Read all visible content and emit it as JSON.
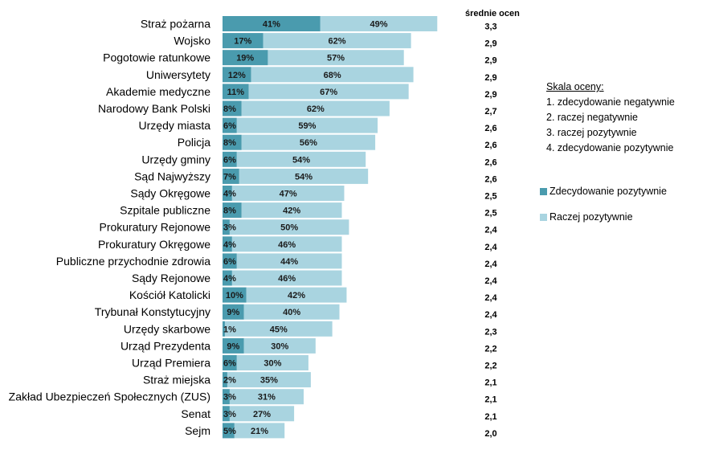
{
  "chart_data": {
    "type": "bar",
    "orientation": "horizontal",
    "stacked": true,
    "categories": [
      "Straż pożarna",
      "Wojsko",
      "Pogotowie ratunkowe",
      "Uniwersytety",
      "Akademie medyczne",
      "Narodowy Bank Polski",
      "Urzędy miasta",
      "Policja",
      "Urzędy gminy",
      "Sąd Najwyższy",
      "Sądy Okręgowe",
      "Szpitale publiczne",
      "Prokuratury Rejonowe",
      "Prokuratury Okręgowe",
      "Publiczne przychodnie zdrowia",
      "Sądy Rejonowe",
      "Kościół Katolicki",
      "Trybunał Konstytucyjny",
      "Urzędy skarbowe",
      "Urząd Prezydenta",
      "Urząd Premiera",
      "Straż miejska",
      "Zakład Ubezpieczeń Społecznych (ZUS)",
      "Senat",
      "Sejm"
    ],
    "series": [
      {
        "name": "Zdecydowanie pozytywnie",
        "color": "#4a9bae",
        "values": [
          41,
          17,
          19,
          12,
          11,
          8,
          6,
          8,
          6,
          7,
          4,
          8,
          3,
          4,
          6,
          4,
          10,
          9,
          1,
          9,
          6,
          2,
          3,
          3,
          5
        ]
      },
      {
        "name": "Raczej pozytywnie",
        "color": "#a9d4e0",
        "values": [
          49,
          62,
          57,
          68,
          67,
          62,
          59,
          56,
          54,
          54,
          47,
          42,
          50,
          46,
          44,
          46,
          42,
          40,
          45,
          30,
          30,
          35,
          31,
          27,
          21
        ]
      }
    ],
    "average_header": "średnie ocen",
    "averages": [
      "3,3",
      "2,9",
      "2,9",
      "2,9",
      "2,9",
      "2,7",
      "2,6",
      "2,6",
      "2,6",
      "2,6",
      "2,5",
      "2,5",
      "2,4",
      "2,4",
      "2,4",
      "2,4",
      "2,4",
      "2,4",
      "2,3",
      "2,2",
      "2,2",
      "2,1",
      "2,1",
      "2,1",
      "2,0"
    ],
    "legend_position": "right",
    "grid": false
  },
  "scale": {
    "title": "Skala oceny:",
    "items": [
      "1. zdecydowanie negatywnie",
      "2. raczej negatywnie",
      "3. raczej pozytywnie",
      "4. zdecydowanie pozytywnie"
    ]
  }
}
